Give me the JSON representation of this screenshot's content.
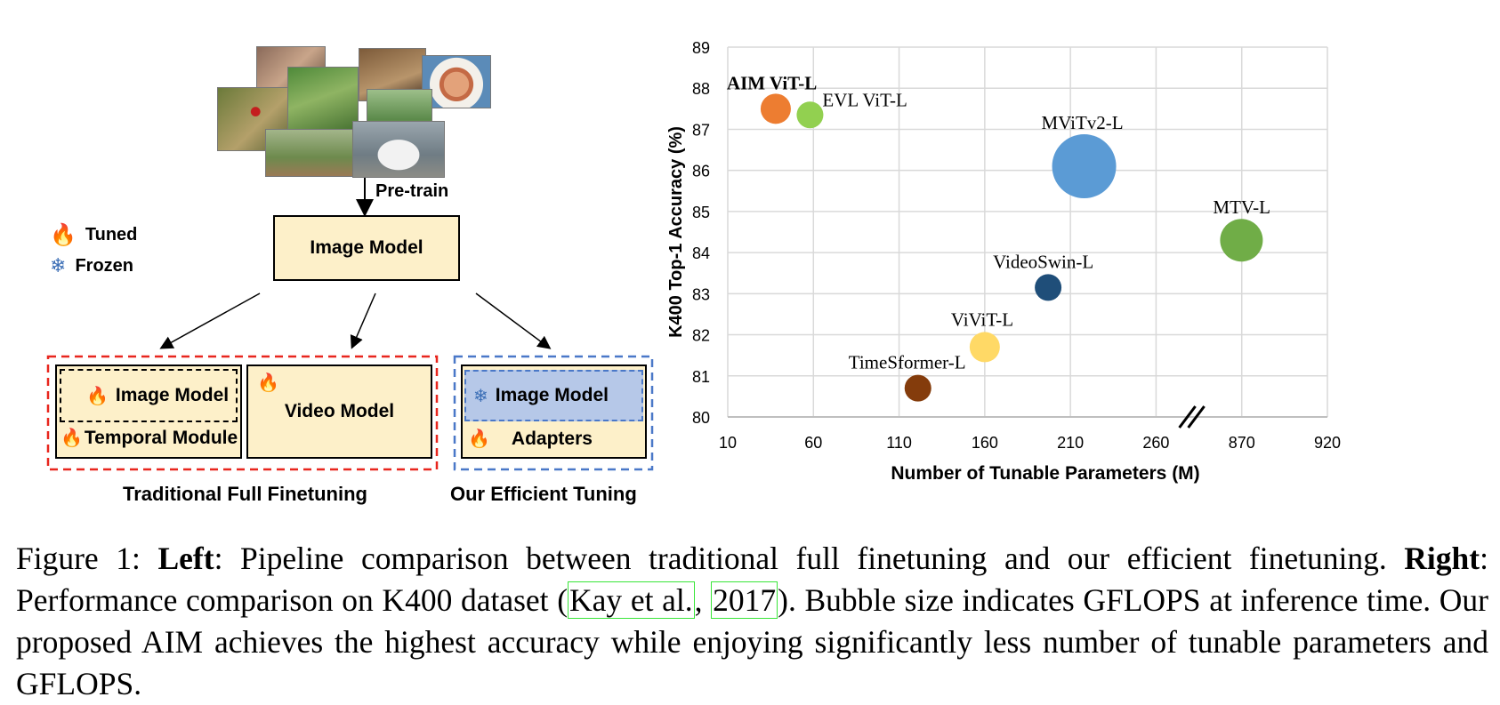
{
  "left": {
    "pretrain_label": "Pre-train",
    "legend": {
      "tuned": "Tuned",
      "frozen": "Frozen"
    },
    "image_model_label": "Image Model",
    "traditional": {
      "image_model": "Image Model",
      "temporal_module": "Temporal Module",
      "video_model": "Video Model",
      "title": "Traditional Full Finetuning"
    },
    "efficient": {
      "image_model": "Image Model",
      "adapters": "Adapters",
      "title": "Our Efficient Tuning"
    },
    "colors": {
      "box_fill": "#fdf0c9",
      "frozen_fill": "#b6c8e8",
      "red_dash": "#e8261e",
      "blue_dash": "#4a78c8",
      "flame": "#e8261e",
      "snow": "#3c6fb6"
    }
  },
  "chart_data": {
    "type": "scatter",
    "xlabel": "Number of Tunable Parameters (M)",
    "ylabel": "K400 Top-1 Accuracy (%)",
    "x_ticks": [
      "10",
      "60",
      "110",
      "160",
      "210",
      "260",
      "870",
      "920"
    ],
    "y_ticks": [
      "80",
      "81",
      "82",
      "83",
      "84",
      "85",
      "86",
      "87",
      "88",
      "89"
    ],
    "ylim": [
      80,
      89
    ],
    "x_axis_break": true,
    "grid": true,
    "size_meaning": "GFLOPS",
    "points": [
      {
        "label": "AIM ViT-L",
        "x": 38,
        "y": 87.5,
        "bold": true,
        "color": "#ed7d31"
      },
      {
        "label": "EVL ViT-L",
        "x": 58,
        "y": 87.35,
        "bold": false,
        "color": "#92d050"
      },
      {
        "label": "MViTv2-L",
        "x": 218,
        "y": 86.1,
        "bold": false,
        "color": "#5b9bd5"
      },
      {
        "label": "MTV-L",
        "x": 868,
        "y": 84.3,
        "bold": false,
        "color": "#70ad47"
      },
      {
        "label": "VideoSwin-L",
        "x": 197,
        "y": 83.15,
        "bold": false,
        "color": "#1f4e79"
      },
      {
        "label": "ViViT-L",
        "x": 160,
        "y": 81.7,
        "bold": false,
        "color": "#ffd966"
      },
      {
        "label": "TimeSformer-L",
        "x": 121,
        "y": 80.7,
        "bold": false,
        "color": "#843c0c"
      }
    ]
  },
  "caption": {
    "fig_prefix": "Figure 1: ",
    "left_bold": "Left",
    "left_text": ": Pipeline comparison between traditional full finetuning and our efficient finetuning. ",
    "right_bold": "Right",
    "right_text_1": ": Performance comparison on K400 dataset (",
    "cite_author": "Kay et al.",
    "cite_sep": ", ",
    "cite_year": "2017",
    "right_text_2": "). Bubble size indicates GFLOPS at inference time. Our proposed AIM achieves the highest accuracy while enjoying significantly less number of tunable parameters and GFLOPS."
  }
}
